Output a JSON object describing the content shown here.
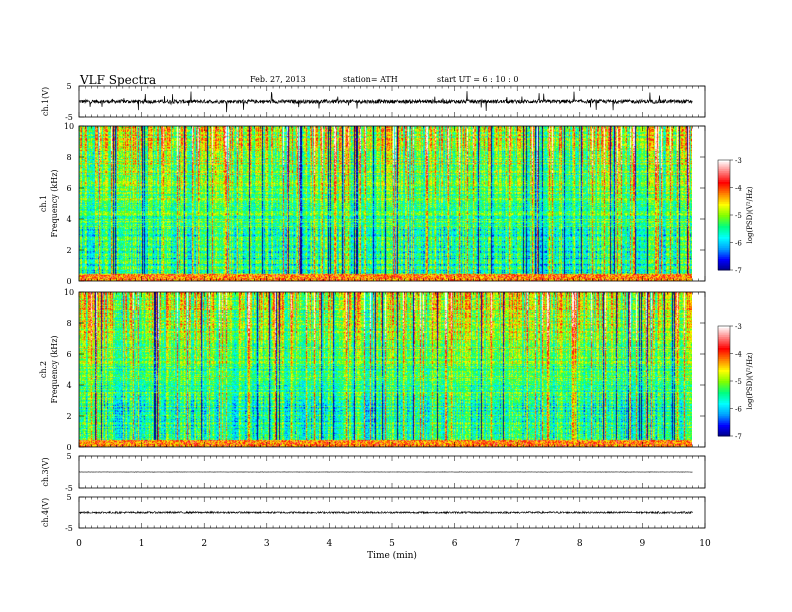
{
  "header": {
    "title": "VLF  Spectra",
    "date": "Feb. 27, 2013",
    "station": "station= ATH",
    "start": "start  UT  =   6  : 10 : 0"
  },
  "chart_data": [
    {
      "type": "line",
      "panel": "ch1-waveform",
      "ylabel": "ch.1(V)",
      "y_ticks": [
        "5",
        "-5"
      ],
      "ylim": [
        -5,
        5
      ],
      "xlim": [
        0,
        10
      ],
      "x_end": 9.8,
      "baseline": 0,
      "noise_amplitude": 0.6
    },
    {
      "type": "heatmap",
      "panel": "ch1-spectrogram",
      "ylabel_line1": "ch.1",
      "ylabel_line2": "Frequency  (kHz)",
      "y_ticks": [
        "0",
        "2",
        "4",
        "6",
        "8",
        "10"
      ],
      "ylim": [
        0,
        10
      ],
      "xlim": [
        0,
        10
      ],
      "x_end": 9.8,
      "colorbar": {
        "label": "log(PSD)(V²/Hz)",
        "ticks": [
          "-3",
          "-4",
          "-5",
          "-6",
          "-7"
        ],
        "range": [
          -7,
          -3
        ],
        "colors": [
          "#000080",
          "#0000ff",
          "#00a0ff",
          "#00ffff",
          "#00ff80",
          "#80ff00",
          "#ffff00",
          "#ff8000",
          "#ff0000",
          "#ff8080",
          "#ffffff"
        ]
      }
    },
    {
      "type": "heatmap",
      "panel": "ch2-spectrogram",
      "ylabel_line1": "ch.2",
      "ylabel_line2": "Frequency  (kHz)",
      "y_ticks": [
        "0",
        "2",
        "4",
        "6",
        "8",
        "10"
      ],
      "ylim": [
        0,
        10
      ],
      "xlim": [
        0,
        10
      ],
      "x_end": 9.8,
      "colorbar": {
        "label": "log(PSD)(V²/Hz)",
        "ticks": [
          "-3",
          "-4",
          "-5",
          "-6",
          "-7"
        ],
        "range": [
          -7,
          -3
        ],
        "colors": [
          "#000080",
          "#0000ff",
          "#00a0ff",
          "#00ffff",
          "#00ff80",
          "#80ff00",
          "#ffff00",
          "#ff8000",
          "#ff0000",
          "#ff8080",
          "#ffffff"
        ]
      }
    },
    {
      "type": "line",
      "panel": "ch3-waveform",
      "ylabel": "ch.3(V)",
      "y_ticks": [
        "5",
        "-5"
      ],
      "ylim": [
        -5,
        5
      ],
      "xlim": [
        0,
        10
      ],
      "x_end": 9.8,
      "baseline": 0,
      "noise_amplitude": 0.05
    },
    {
      "type": "line",
      "panel": "ch4-waveform",
      "ylabel": "ch.4(V)",
      "y_ticks": [
        "5",
        "-5"
      ],
      "ylim": [
        -5,
        5
      ],
      "xlim": [
        0,
        10
      ],
      "x_end": 9.8,
      "baseline": 0,
      "noise_amplitude": 0.3
    }
  ],
  "x_axis": {
    "label": "Time  (min)",
    "ticks": [
      "0",
      "1",
      "2",
      "3",
      "4",
      "5",
      "6",
      "7",
      "8",
      "9",
      "10"
    ]
  }
}
